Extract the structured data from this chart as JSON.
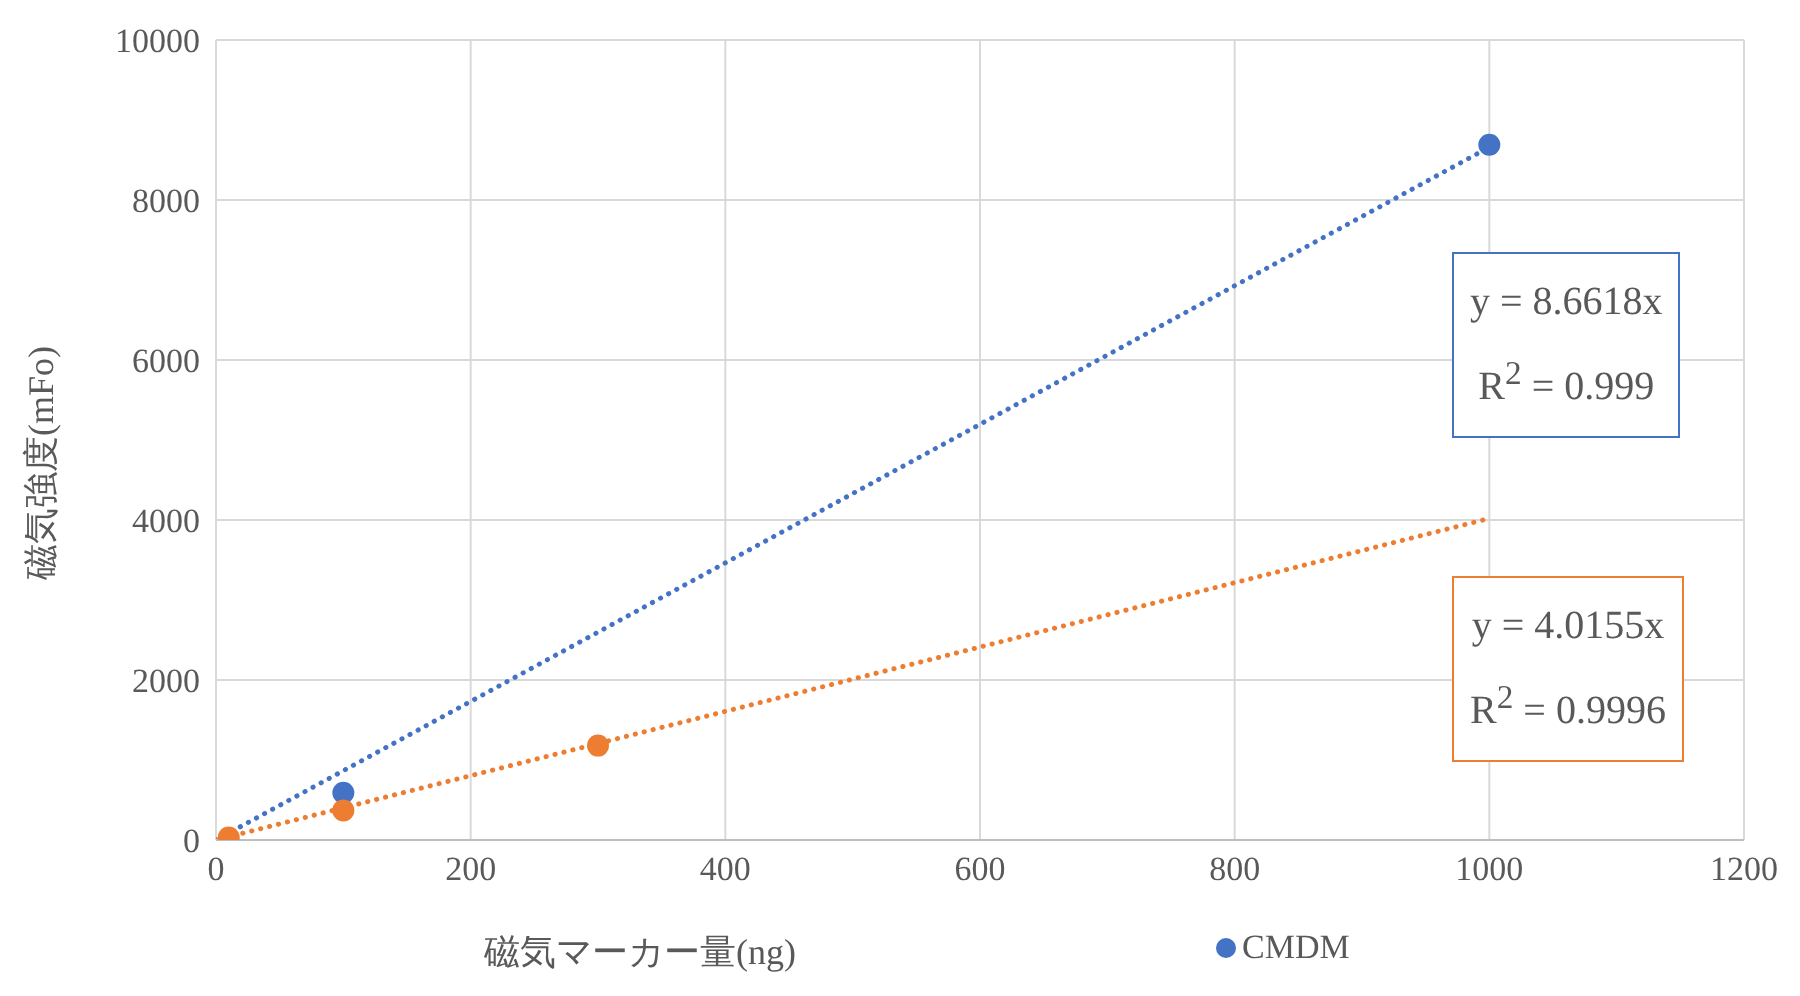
{
  "chart_data": {
    "type": "scatter",
    "xlabel": "磁気マーカー量(ng)",
    "ylabel": "磁気強度(mFo)",
    "xlim": [
      0,
      1200
    ],
    "xticks": [
      0,
      200,
      400,
      600,
      800,
      1000,
      1200
    ],
    "ylim": [
      0,
      10000
    ],
    "yticks": [
      0,
      2000,
      4000,
      6000,
      8000,
      10000
    ],
    "grid": true,
    "legend": "bottom",
    "marker": "circle",
    "series": [
      {
        "name": "CMDM",
        "color": "#4472c4",
        "x": [
          100,
          1000
        ],
        "values": [
          590,
          8690
        ]
      },
      {
        "color": "#ed7d31",
        "x": [
          10,
          100,
          300
        ],
        "values": [
          30,
          370,
          1180
        ]
      },
      {
        "type": "line",
        "color": "#4472c4",
        "x": [
          0,
          1000
        ],
        "values": [
          0,
          8660
        ],
        "line_style": "dotted",
        "marker": "none"
      },
      {
        "type": "line",
        "color": "#ed7d31",
        "x": [
          0,
          1000
        ],
        "values": [
          0,
          4020
        ],
        "line_style": "dotted",
        "marker": "none"
      }
    ],
    "annotations": [
      "y = 8.6618x",
      "R$^{2}$ = 0.999",
      "y = 4.0155x",
      "R$^{2}$ = 0.9996"
    ]
  }
}
